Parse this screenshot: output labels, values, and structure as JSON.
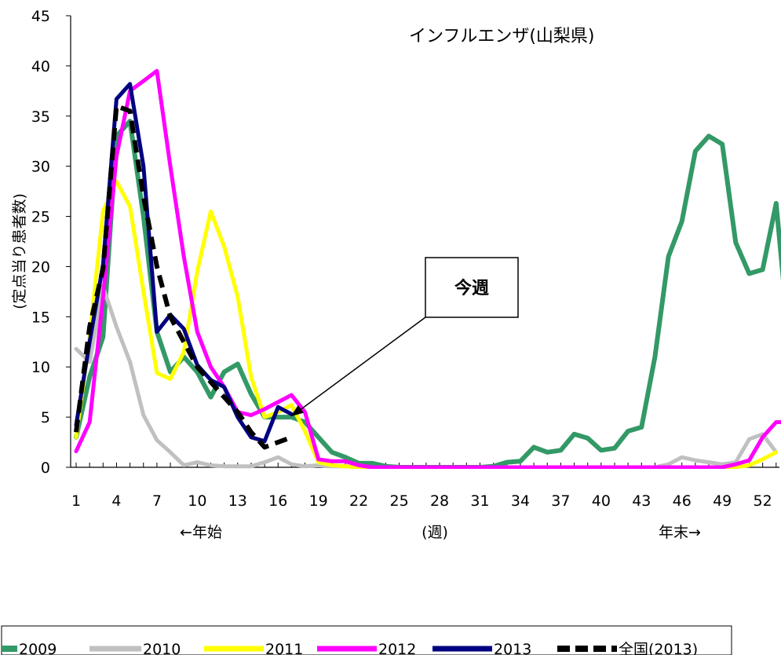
{
  "chart_data": {
    "type": "line",
    "title": "インフルエンザ(山梨県)",
    "ylabel": "(定点当り患者数)",
    "xlabel": "(週)",
    "x_start_label": "←年始",
    "x_end_label": "年末→",
    "ylim": [
      0,
      45
    ],
    "xlim": [
      1,
      53
    ],
    "yticks": [
      0,
      5,
      10,
      15,
      20,
      25,
      30,
      35,
      40,
      45
    ],
    "xticks": [
      1,
      4,
      7,
      10,
      13,
      16,
      19,
      22,
      25,
      28,
      31,
      34,
      37,
      40,
      43,
      46,
      49,
      52
    ],
    "grid": false,
    "legend_position": "bottom",
    "annotation": {
      "text": "今週",
      "week": 17,
      "value": 5.3
    },
    "series": [
      {
        "name": "2009",
        "color": "#339966",
        "dash": false,
        "width": 6,
        "values": [
          3,
          9,
          13,
          33,
          34.5,
          25,
          13.5,
          9.5,
          11,
          9.5,
          7,
          9.5,
          10.3,
          7.3,
          5,
          5,
          5,
          4.5,
          3,
          1.5,
          1,
          0.4,
          0.4,
          0.1,
          0,
          0,
          0,
          0,
          0,
          0,
          0,
          0.1,
          0.5,
          0.6,
          2,
          1.5,
          1.7,
          3.3,
          2.9,
          1.7,
          1.9,
          3.6,
          4,
          11,
          21,
          24.5,
          31.5,
          33,
          32.2,
          22.4,
          19.3,
          19.7,
          26.3,
          12
        ]
      },
      {
        "name": "2010",
        "color": "#c0c0c0",
        "dash": false,
        "width": 5,
        "values": [
          11.8,
          10.5,
          18,
          14,
          10.5,
          5.2,
          2.7,
          1.5,
          0.2,
          0.5,
          0.2,
          0.1,
          0.1,
          0.1,
          0.5,
          1,
          0.3,
          0.1,
          0.2,
          0.1,
          0.1,
          0,
          0,
          0,
          0,
          0,
          0,
          0,
          0,
          0,
          0,
          0,
          0,
          0,
          0,
          0,
          0,
          0,
          0,
          0,
          0,
          0,
          0,
          0,
          0.3,
          1,
          0.7,
          0.5,
          0.3,
          0.5,
          2.8,
          3.3,
          1.5
        ]
      },
      {
        "name": "2011",
        "color": "#ffff00",
        "dash": false,
        "width": 5,
        "values": [
          3,
          13,
          25.5,
          28.5,
          26,
          17.5,
          9.4,
          8.8,
          11.5,
          19.5,
          25.5,
          22,
          17,
          9,
          5,
          5.5,
          6.2,
          3.6,
          0.5,
          0.2,
          0.1,
          0,
          0,
          0,
          0,
          0,
          0,
          0,
          0,
          0,
          0,
          0,
          0,
          0,
          0,
          0,
          0,
          0,
          0,
          0,
          0,
          0,
          0,
          0,
          0,
          0,
          0,
          0,
          0,
          0,
          0.2,
          0.8,
          1.5
        ]
      },
      {
        "name": "2012",
        "color": "#ff00ff",
        "dash": false,
        "width": 5,
        "values": [
          1.6,
          4.5,
          17,
          31,
          37.5,
          38.5,
          39.5,
          30,
          21,
          13.5,
          10,
          8,
          5.5,
          5.2,
          5.8,
          6.5,
          7.2,
          5.5,
          0.8,
          0.6,
          0.6,
          0.2,
          0,
          0,
          0,
          0,
          0,
          0,
          0,
          0,
          0,
          0,
          0,
          0,
          0,
          0,
          0,
          0,
          0,
          0,
          0,
          0,
          0,
          0,
          0,
          0,
          0,
          0,
          0,
          0.3,
          0.7,
          3,
          4.5,
          4.5
        ]
      },
      {
        "name": "2013",
        "color": "#000080",
        "dash": false,
        "width": 5,
        "values": [
          4.2,
          12.5,
          20.2,
          36.7,
          38.2,
          30,
          13.5,
          15.2,
          13.8,
          10.2,
          8.7,
          8,
          5,
          3,
          2.6,
          6,
          5.3
        ]
      },
      {
        "name": "全国(2013)",
        "color": "#000000",
        "dash": true,
        "width": 6,
        "values": [
          3.5,
          14,
          19.8,
          36,
          35.5,
          27,
          20,
          15,
          12.5,
          10,
          8.5,
          7,
          5.5,
          3.5,
          2,
          2.5,
          3
        ]
      }
    ]
  }
}
